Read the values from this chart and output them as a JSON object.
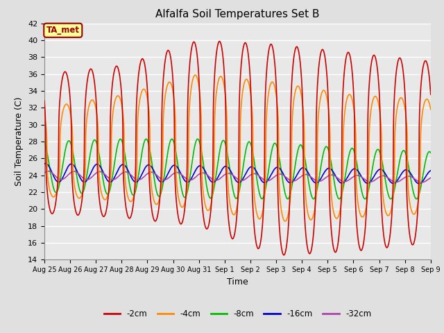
{
  "title": "Alfalfa Soil Temperatures Set B",
  "xlabel": "Time",
  "ylabel": "Soil Temperature (C)",
  "ylim": [
    14,
    42
  ],
  "yticks": [
    14,
    16,
    18,
    20,
    22,
    24,
    26,
    28,
    30,
    32,
    34,
    36,
    38,
    40,
    42
  ],
  "series": {
    "-2cm": {
      "color": "#cc0000",
      "lw": 1.2
    },
    "-4cm": {
      "color": "#ff8800",
      "lw": 1.2
    },
    "-8cm": {
      "color": "#00bb00",
      "lw": 1.2
    },
    "-16cm": {
      "color": "#0000cc",
      "lw": 1.2
    },
    "-32cm": {
      "color": "#aa44aa",
      "lw": 1.2
    }
  },
  "ta_met_box": {
    "text": "TA_met",
    "facecolor": "#ffff99",
    "edgecolor": "#990000",
    "textcolor": "#990000"
  },
  "bg_color": "#e0e0e0",
  "plot_bg_color": "#e8e8e8",
  "grid_color": "#ffffff",
  "tick_labels": [
    "Aug 25",
    "Aug 26",
    "Aug 27",
    "Aug 28",
    "Aug 29",
    "Aug 30",
    "Aug 31",
    "Sep 1",
    "Sep 2",
    "Sep 3",
    "Sep 4",
    "Sep 5",
    "Sep 6",
    "Sep 7",
    "Sep 8",
    "Sep 9"
  ],
  "legend_labels": [
    "-2cm",
    "-4cm",
    "-8cm",
    "-16cm",
    "-32cm"
  ]
}
